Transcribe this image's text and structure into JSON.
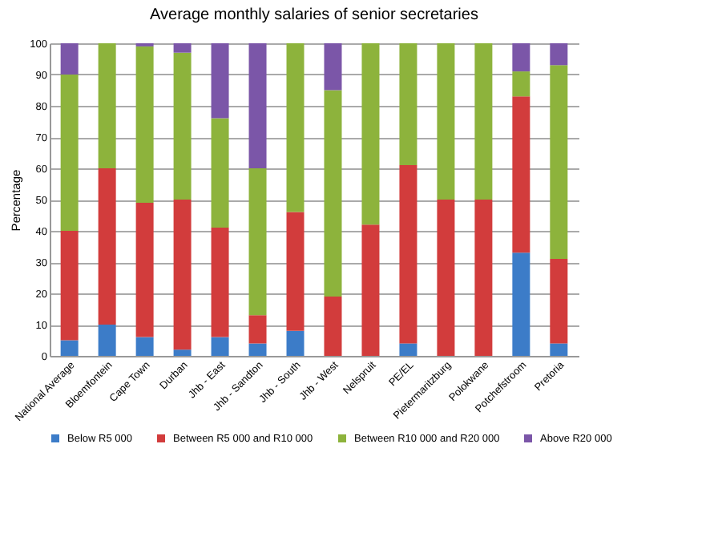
{
  "chart_data": {
    "type": "bar",
    "title": "Average monthly salaries of senior secretaries",
    "ylabel": "Percentage",
    "stacked": true,
    "categories": [
      "National Average",
      "Bloemfontein",
      "Cape Town",
      "Durban",
      "Jhb - East",
      "Jhb - Sandton",
      "Jhb - South",
      "Jhb - West",
      "Nelspruit",
      "PE/EL",
      "Pietermaritzburg",
      "Polokwane",
      "Potchefstroom",
      "Pretoria"
    ],
    "series": [
      {
        "name": "Below R5 000",
        "color": "#3c7cc8",
        "values": [
          5,
          10,
          6,
          2,
          6,
          4,
          8,
          0,
          0,
          4,
          0,
          0,
          33,
          4
        ]
      },
      {
        "name": "Between R5 000 and R10 000",
        "color": "#d23c3c",
        "values": [
          35,
          50,
          43,
          48,
          35,
          9,
          38,
          19,
          42,
          57,
          50,
          50,
          50,
          27
        ]
      },
      {
        "name": "Between R10 000 and R20 000",
        "color": "#8db33c",
        "values": [
          50,
          40,
          50,
          47,
          35,
          47,
          54,
          66,
          58,
          39,
          50,
          50,
          8,
          62
        ]
      },
      {
        "name": "Above R20 000",
        "color": "#7b56a8",
        "values": [
          10,
          0,
          1,
          3,
          24,
          40,
          0,
          15,
          0,
          0,
          0,
          0,
          9,
          7
        ]
      }
    ],
    "ylim": [
      0,
      100
    ],
    "yticks": [
      0,
      10,
      20,
      30,
      40,
      50,
      60,
      70,
      80,
      90,
      100
    ],
    "grid": "y",
    "legend": "bottom"
  }
}
